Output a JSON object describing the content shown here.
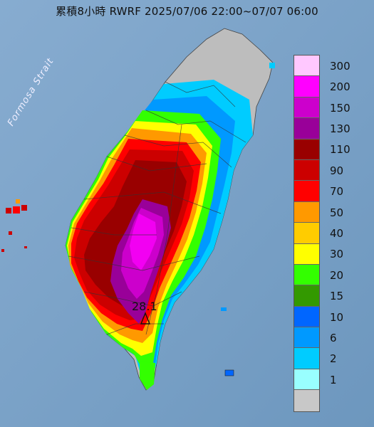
{
  "title": "累積8小時 RWRF 2025/07/06 22:00~07/07 06:00",
  "sea_label": "Formosa Strait",
  "peak_value": "28.1",
  "legend": [
    {
      "label": "300",
      "color": "#ffc8ff"
    },
    {
      "label": "200",
      "color": "#ff00ff"
    },
    {
      "label": "150",
      "color": "#cc00cc"
    },
    {
      "label": "130",
      "color": "#990099"
    },
    {
      "label": "110",
      "color": "#990000"
    },
    {
      "label": "90",
      "color": "#cc0000"
    },
    {
      "label": "70",
      "color": "#ff0000"
    },
    {
      "label": "50",
      "color": "#ff9900"
    },
    {
      "label": "40",
      "color": "#ffcc00"
    },
    {
      "label": "30",
      "color": "#ffff00"
    },
    {
      "label": "20",
      "color": "#33ff00"
    },
    {
      "label": "15",
      "color": "#339900"
    },
    {
      "label": "10",
      "color": "#0066ff"
    },
    {
      "label": "6",
      "color": "#0099ff"
    },
    {
      "label": "2",
      "color": "#00ccff"
    },
    {
      "label": "1",
      "color": "#99ffff"
    },
    {
      "label": "",
      "color": "#c8c8c8"
    }
  ]
}
